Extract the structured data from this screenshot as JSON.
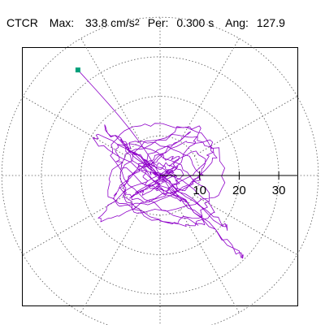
{
  "header": {
    "station": "CTCR",
    "max_label": "Max:",
    "max_value": "33.8 cm/s",
    "max_exponent": "2",
    "per_label": "Per:",
    "per_value": "0.300 s",
    "ang_label": "Ang:",
    "ang_value": "127.9"
  },
  "chart_data": {
    "type": "polar-particle-motion",
    "r_ticks": [
      10,
      20,
      30
    ],
    "r_tick_labels": [
      "10",
      "20",
      "30"
    ],
    "r_max": 40,
    "grid": true,
    "grid_style": "dotted",
    "spokes_deg": [
      0,
      30,
      60,
      90,
      120,
      150,
      180,
      210,
      240,
      270,
      300,
      330
    ],
    "peak": {
      "r": 33.8,
      "angle_deg": 127.9
    },
    "colors": {
      "trace": "#8e00c8",
      "marker": "#00a07a",
      "grid": "#555555",
      "axis": "#000000"
    }
  }
}
